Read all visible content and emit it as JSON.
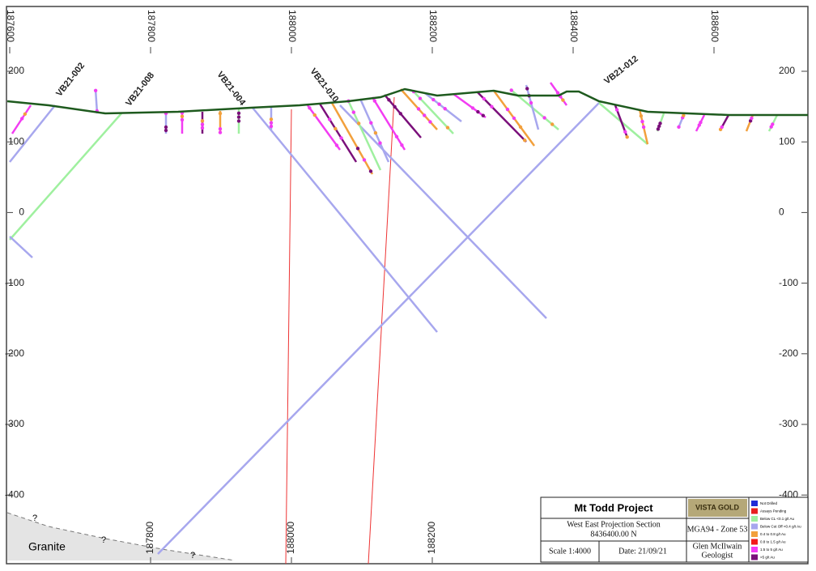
{
  "axes": {
    "x_ticks": [
      187600,
      187800,
      188000,
      188200,
      188400,
      188600
    ],
    "bottom_x_ticks": [
      187800,
      188000,
      188200
    ],
    "y_ticks": [
      200,
      100,
      0,
      -100,
      -200,
      -300,
      -400
    ]
  },
  "drill_holes": [
    "VB21-002",
    "VB21-008",
    "VB21-004",
    "VB21-010",
    "VB21-012"
  ],
  "geology": {
    "label": "Granite",
    "uncertain": "?"
  },
  "title_block": {
    "project": "Mt Todd Project",
    "section": "West East Projection Section",
    "northing": "8436400.00 N",
    "scale": "Scale 1:4000",
    "date": "Date: 21/09/21",
    "grid": "MGA94 - Zone 53",
    "author": "Glen McIlwain",
    "role": "Geologist",
    "logo": "VISTA GOLD",
    "legend": [
      {
        "label": "Not Drilled",
        "color": "#1f2bd6"
      },
      {
        "label": "Assays Pending",
        "color": "#e81f1f"
      },
      {
        "label": "Below CL <0.1 g/t Au",
        "color": "#9ff09f"
      },
      {
        "label": "Below Cut Off <0.4 g/t Au",
        "color": "#a7a7ee"
      },
      {
        "label": "0.4 to 0.8 g/t Au",
        "color": "#f2a03c"
      },
      {
        "label": "0.8 to 1.5 g/t Au",
        "color": "#f21a1a"
      },
      {
        "label": "1.5 to 5 g/t Au",
        "color": "#f23cf2"
      },
      {
        "label": ">5 g/t Au",
        "color": "#7a0f7a"
      }
    ]
  }
}
